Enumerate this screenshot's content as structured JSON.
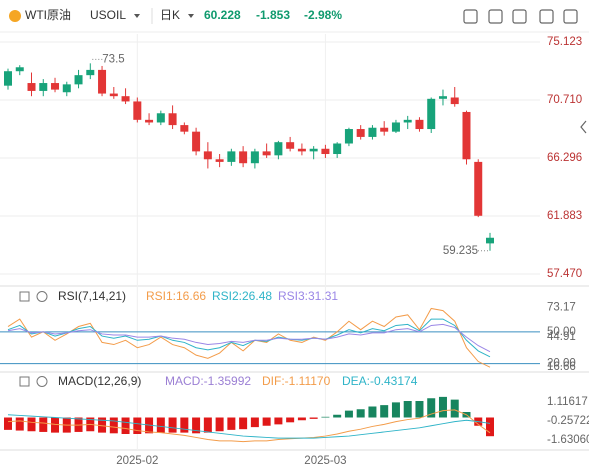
{
  "header": {
    "symbol": "WTI原油",
    "code": "USOIL",
    "period": "日K",
    "price": "60.228",
    "change": "-1.853",
    "change_pct": "-2.98%"
  },
  "chart_data": [
    {
      "type": "candlestick",
      "up_color": "#17a37a",
      "down_color": "#e23636",
      "open": [
        71.8,
        72.9,
        72.0,
        71.4,
        72.0,
        71.3,
        71.9,
        72.6,
        73.0,
        71.2,
        71.0,
        70.6,
        69.2,
        69.0,
        69.7,
        68.8,
        68.3,
        66.8,
        66.2,
        66.0,
        66.8,
        65.9,
        66.8,
        66.5,
        67.5,
        67.0,
        66.8,
        67.0,
        66.6,
        67.4,
        68.5,
        67.9,
        68.6,
        68.3,
        69.0,
        69.2,
        68.5,
        70.8,
        70.9,
        69.8,
        66.0,
        59.8
      ],
      "high": [
        73.1,
        73.358,
        72.8,
        72.3,
        72.4,
        72.1,
        73.0,
        73.5,
        73.3,
        71.7,
        71.6,
        70.9,
        69.7,
        69.9,
        70.3,
        69.0,
        68.6,
        67.5,
        66.6,
        67.0,
        67.2,
        67.0,
        67.4,
        67.6,
        67.9,
        67.4,
        67.2,
        67.3,
        67.5,
        68.6,
        68.8,
        68.8,
        69.1,
        69.2,
        69.5,
        69.4,
        70.9,
        71.5,
        71.7,
        69.9,
        66.2,
        60.6
      ],
      "low": [
        71.5,
        72.6,
        71.0,
        71.0,
        71.3,
        71.0,
        71.6,
        72.3,
        71.0,
        70.8,
        70.4,
        69.0,
        68.8,
        68.8,
        68.5,
        68.1,
        66.5,
        65.5,
        65.6,
        65.7,
        65.6,
        65.5,
        66.3,
        66.2,
        66.8,
        66.5,
        66.2,
        66.3,
        66.3,
        67.2,
        67.7,
        67.7,
        68.0,
        68.2,
        68.5,
        68.3,
        68.2,
        70.3,
        70.2,
        65.8,
        61.8,
        59.235
      ],
      "close": [
        72.9,
        73.2,
        71.4,
        72.0,
        71.5,
        71.9,
        72.6,
        73.0,
        71.2,
        71.0,
        70.6,
        69.2,
        69.0,
        69.7,
        68.8,
        68.3,
        66.8,
        66.2,
        66.0,
        66.8,
        65.9,
        66.8,
        66.5,
        67.5,
        67.0,
        66.8,
        67.0,
        66.6,
        67.4,
        68.5,
        67.9,
        68.6,
        68.3,
        69.0,
        69.2,
        68.5,
        70.8,
        71.0,
        70.4,
        66.2,
        61.9,
        60.228
      ],
      "ylim": [
        57.47,
        75.123
      ],
      "yticks": [
        75.123,
        {
          "value": 70.71,
          "label": "70.710"
        },
        66.296,
        61.883,
        {
          "value": 57.47,
          "label": "57.470"
        }
      ],
      "grid": true
    },
    {
      "type": "line",
      "title": "RSI(7,14,21)",
      "ylim": [
        14,
        80
      ],
      "yticks": [
        73.17,
        {
          "value": 50,
          "label": "50.00"
        },
        44.91,
        16.66,
        {
          "value": 20,
          "label": "20.00"
        }
      ],
      "hlines": [
        50,
        20
      ],
      "series": [
        {
          "name": "RSI1:16.66",
          "color": "#f39c4a",
          "values": [
            55,
            62,
            45,
            50,
            42,
            48,
            55,
            58,
            40,
            38,
            42,
            35,
            38,
            45,
            38,
            35,
            28,
            25,
            30,
            40,
            32,
            42,
            40,
            48,
            42,
            40,
            45,
            42,
            50,
            60,
            52,
            60,
            55,
            64,
            66,
            52,
            72,
            70,
            60,
            35,
            22,
            16.66
          ]
        },
        {
          "name": "RSI2:26.48",
          "color": "#2fb4c8",
          "values": [
            52,
            56,
            48,
            50,
            46,
            49,
            53,
            55,
            46,
            44,
            46,
            42,
            43,
            46,
            42,
            40,
            35,
            33,
            35,
            40,
            37,
            42,
            41,
            45,
            43,
            42,
            44,
            43,
            47,
            52,
            49,
            53,
            51,
            56,
            57,
            51,
            62,
            62,
            56,
            42,
            32,
            26.48
          ]
        },
        {
          "name": "RSI3:31.31",
          "color": "#9a86e6",
          "values": [
            51,
            53,
            49,
            50,
            48,
            49,
            51,
            52,
            48,
            47,
            47,
            45,
            45,
            46,
            44,
            43,
            40,
            38,
            39,
            41,
            40,
            42,
            42,
            44,
            43,
            43,
            44,
            43,
            45,
            48,
            47,
            49,
            49,
            52,
            53,
            50,
            56,
            57,
            54,
            45,
            37,
            31.31
          ]
        }
      ]
    },
    {
      "type": "macd",
      "title": "MACD(12,26,9)",
      "ylim": [
        -2,
        2
      ],
      "up_color": "#17855f",
      "down_color": "#e01818",
      "yticks": [
        1.11617,
        -0.25722,
        {
          "value": -1.6306,
          "label": "-1.63060"
        }
      ],
      "categories": [
        null,
        null,
        null,
        null,
        null,
        null,
        null,
        null,
        null,
        null,
        null,
        "2025-02",
        null,
        null,
        null,
        null,
        null,
        null,
        null,
        null,
        null,
        null,
        null,
        null,
        null,
        null,
        null,
        "2025-03",
        null,
        null,
        null,
        null,
        null,
        null,
        null,
        null,
        null,
        null,
        null,
        null,
        null,
        null
      ],
      "series": [
        {
          "name": "MACD:-1.35992",
          "kind": "bar",
          "color": "#9b7fd4",
          "values": [
            -0.9,
            -0.95,
            -1.0,
            -1.05,
            -1.1,
            -1.1,
            -1.05,
            -1.0,
            -1.1,
            -1.15,
            -1.2,
            -1.2,
            -1.15,
            -1.1,
            -1.1,
            -1.1,
            -1.15,
            -1.1,
            -1.0,
            -0.9,
            -0.85,
            -0.7,
            -0.6,
            -0.5,
            -0.35,
            -0.2,
            -0.1,
            0.05,
            0.2,
            0.5,
            0.6,
            0.8,
            0.9,
            1.1,
            1.2,
            1.2,
            1.4,
            1.5,
            1.3,
            0.4,
            -0.6,
            -1.35992
          ]
        },
        {
          "name": "DIF:-1.11170",
          "kind": "line",
          "color": "#f39c4a",
          "values": [
            -0.3,
            -0.25,
            -0.35,
            -0.4,
            -0.5,
            -0.55,
            -0.55,
            -0.5,
            -0.6,
            -0.7,
            -0.8,
            -0.95,
            -1.05,
            -1.1,
            -1.2,
            -1.3,
            -1.45,
            -1.6,
            -1.7,
            -1.7,
            -1.75,
            -1.7,
            -1.7,
            -1.6,
            -1.55,
            -1.5,
            -1.45,
            -1.35,
            -1.2,
            -1.0,
            -0.85,
            -0.65,
            -0.5,
            -0.3,
            -0.15,
            -0.05,
            0.25,
            0.5,
            0.55,
            0.2,
            -0.5,
            -1.1117
          ]
        },
        {
          "name": "DEA:-0.43174",
          "kind": "line",
          "color": "#2fb4c8",
          "values": [
            0.2,
            0.15,
            0.1,
            0.05,
            0.0,
            -0.05,
            -0.1,
            -0.15,
            -0.2,
            -0.25,
            -0.35,
            -0.45,
            -0.55,
            -0.65,
            -0.75,
            -0.85,
            -0.95,
            -1.05,
            -1.15,
            -1.25,
            -1.35,
            -1.4,
            -1.45,
            -1.5,
            -1.5,
            -1.5,
            -1.5,
            -1.45,
            -1.4,
            -1.35,
            -1.25,
            -1.15,
            -1.05,
            -0.95,
            -0.85,
            -0.75,
            -0.6,
            -0.45,
            -0.3,
            -0.2,
            -0.3,
            -0.43174
          ]
        }
      ]
    }
  ]
}
